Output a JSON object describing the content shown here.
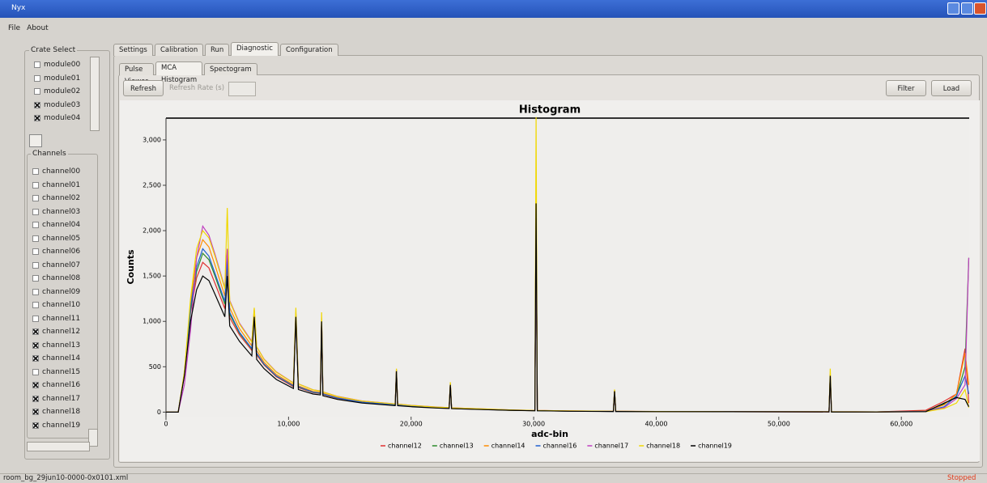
{
  "window": {
    "title": "Nyx"
  },
  "menu": [
    "File",
    "About"
  ],
  "crate_select": {
    "title": "Crate Select",
    "modules": [
      {
        "label": "module00",
        "checked": false
      },
      {
        "label": "module01",
        "checked": false
      },
      {
        "label": "module02",
        "checked": false
      },
      {
        "label": "module03",
        "checked": true
      },
      {
        "label": "module04",
        "checked": true
      }
    ]
  },
  "channels": {
    "title": "Channels",
    "items": [
      {
        "label": "channel00",
        "checked": false
      },
      {
        "label": "channel01",
        "checked": false
      },
      {
        "label": "channel02",
        "checked": false
      },
      {
        "label": "channel03",
        "checked": false
      },
      {
        "label": "channel04",
        "checked": false
      },
      {
        "label": "channel05",
        "checked": false
      },
      {
        "label": "channel06",
        "checked": false
      },
      {
        "label": "channel07",
        "checked": false
      },
      {
        "label": "channel08",
        "checked": false
      },
      {
        "label": "channel09",
        "checked": false
      },
      {
        "label": "channel10",
        "checked": false
      },
      {
        "label": "channel11",
        "checked": false
      },
      {
        "label": "channel12",
        "checked": true
      },
      {
        "label": "channel13",
        "checked": true
      },
      {
        "label": "channel14",
        "checked": true
      },
      {
        "label": "channel15",
        "checked": false
      },
      {
        "label": "channel16",
        "checked": true
      },
      {
        "label": "channel17",
        "checked": true
      },
      {
        "label": "channel18",
        "checked": true
      },
      {
        "label": "channel19",
        "checked": true
      }
    ]
  },
  "tabs": [
    {
      "label": "Settings",
      "active": false
    },
    {
      "label": "Calibration",
      "active": false
    },
    {
      "label": "Run",
      "active": false
    },
    {
      "label": "Diagnostic",
      "active": true
    },
    {
      "label": "Configuration",
      "active": false
    }
  ],
  "subtabs": [
    {
      "label": "Pulse Viewer",
      "active": false
    },
    {
      "label": "MCA Histogram",
      "active": true
    },
    {
      "label": "Spectogram",
      "active": false
    }
  ],
  "toolbar": {
    "refresh": "Refresh",
    "refresh_rate": "Refresh Rate (s)",
    "filter": "Filter",
    "load": "Load"
  },
  "chart_data": {
    "type": "line",
    "title": "Histogram",
    "x_label": "adc-bin",
    "y_label": "Counts",
    "xlim": [
      0,
      65536
    ],
    "ylim": [
      -50,
      3240
    ],
    "xticks": [
      0,
      {
        "value": 10000,
        "label": "10,000"
      },
      {
        "value": 20000,
        "label": "20,000"
      },
      {
        "value": 30000,
        "label": "30,000"
      },
      {
        "value": 40000,
        "label": "40,000"
      },
      {
        "value": 50000,
        "label": "50,000"
      },
      {
        "value": 60000,
        "label": "60,000"
      }
    ],
    "yticks": [
      0,
      500,
      {
        "value": 1000,
        "label": "1,000"
      },
      {
        "value": 1500,
        "label": "1,500"
      },
      {
        "value": 2000,
        "label": "2,000"
      },
      {
        "value": 2500,
        "label": "2,500"
      },
      {
        "value": 3000,
        "label": "3,000"
      }
    ],
    "x": [
      0,
      1000,
      1500,
      2000,
      2500,
      3000,
      3500,
      4000,
      4800,
      5000,
      5200,
      6000,
      7000,
      7200,
      7400,
      8000,
      9000,
      10400,
      10600,
      10800,
      12000,
      12600,
      12700,
      12800,
      14000,
      16000,
      18700,
      18800,
      18900,
      20000,
      22000,
      23100,
      23200,
      23300,
      26000,
      28000,
      30100,
      30200,
      30300,
      33000,
      36500,
      36600,
      36700,
      40000,
      46000,
      54100,
      54200,
      54300,
      58000,
      62000,
      63500,
      64500,
      65200,
      65500
    ],
    "series": [
      {
        "name": "channel12",
        "color": "#e03030",
        "values": [
          0,
          0,
          410,
          1100,
          1480,
          1650,
          1590,
          1420,
          1140,
          1600,
          1040,
          850,
          680,
          1080,
          630,
          520,
          390,
          280,
          1060,
          270,
          215,
          205,
          1010,
          195,
          150,
          105,
          78,
          455,
          76,
          64,
          48,
          42,
          305,
          40,
          30,
          21,
          16,
          2320,
          16,
          11,
          8,
          232,
          8,
          6,
          4,
          3,
          405,
          3,
          3,
          20,
          120,
          200,
          700,
          100
        ]
      },
      {
        "name": "channel13",
        "color": "#2a8a2a",
        "values": [
          0,
          0,
          415,
          1120,
          1550,
          1750,
          1680,
          1500,
          1190,
          1650,
          1080,
          870,
          695,
          1090,
          645,
          528,
          398,
          288,
          1070,
          278,
          218,
          208,
          1015,
          198,
          153,
          108,
          79,
          458,
          77,
          65,
          49,
          43,
          308,
          41,
          30,
          21,
          16,
          2340,
          16,
          11,
          8,
          234,
          8,
          6,
          5,
          4,
          408,
          3,
          3,
          10,
          90,
          170,
          500,
          1700
        ]
      },
      {
        "name": "channel14",
        "color": "#ff8c00",
        "values": [
          0,
          0,
          430,
          1200,
          1700,
          1900,
          1820,
          1620,
          1280,
          1750,
          1150,
          920,
          730,
          1110,
          680,
          550,
          415,
          300,
          1090,
          290,
          228,
          218,
          1030,
          208,
          160,
          113,
          83,
          465,
          81,
          68,
          52,
          46,
          315,
          44,
          32,
          23,
          18,
          2350,
          18,
          12,
          9,
          238,
          9,
          6,
          5,
          4,
          415,
          4,
          3,
          10,
          80,
          200,
          650,
          300
        ]
      },
      {
        "name": "channel16",
        "color": "#2060d0",
        "values": [
          0,
          0,
          420,
          1150,
          1600,
          1800,
          1720,
          1530,
          1220,
          1700,
          1100,
          880,
          700,
          1100,
          650,
          530,
          400,
          290,
          1080,
          280,
          220,
          210,
          1020,
          200,
          155,
          110,
          80,
          460,
          78,
          66,
          50,
          44,
          310,
          42,
          31,
          22,
          17,
          2330,
          17,
          11,
          8,
          235,
          8,
          6,
          5,
          4,
          410,
          4,
          3,
          8,
          60,
          180,
          400,
          200
        ]
      },
      {
        "name": "channel17",
        "color": "#c040c0",
        "values": [
          0,
          0,
          300,
          900,
          1700,
          2050,
          1950,
          1740,
          1370,
          1800,
          1230,
          980,
          780,
          1130,
          720,
          585,
          445,
          322,
          1100,
          312,
          246,
          234,
          1040,
          224,
          174,
          123,
          91,
          470,
          89,
          75,
          57,
          50,
          320,
          48,
          35,
          25,
          19,
          2300,
          19,
          13,
          10,
          240,
          10,
          7,
          5,
          4,
          420,
          4,
          3,
          5,
          50,
          150,
          300,
          1700
        ]
      },
      {
        "name": "channel18",
        "color": "#f0d800",
        "values": [
          0,
          0,
          440,
          1250,
          1800,
          2000,
          1920,
          1720,
          1360,
          2250,
          1220,
          970,
          770,
          1150,
          720,
          580,
          440,
          320,
          1150,
          310,
          245,
          232,
          1100,
          222,
          172,
          122,
          90,
          480,
          88,
          74,
          56,
          50,
          330,
          47,
          35,
          25,
          19,
          3250,
          19,
          13,
          10,
          250,
          10,
          7,
          5,
          4,
          480,
          4,
          3,
          5,
          40,
          100,
          250,
          50
        ]
      },
      {
        "name": "channel19",
        "color": "#000000",
        "values": [
          0,
          0,
          400,
          1000,
          1350,
          1500,
          1450,
          1300,
          1050,
          1500,
          950,
          780,
          620,
          1050,
          580,
          480,
          360,
          260,
          1050,
          250,
          200,
          190,
          1000,
          180,
          140,
          100,
          72,
          450,
          70,
          60,
          45,
          40,
          300,
          38,
          28,
          20,
          15,
          2300,
          15,
          10,
          7,
          230,
          7,
          5,
          4,
          3,
          400,
          3,
          2,
          5,
          100,
          160,
          140,
          60
        ]
      }
    ]
  },
  "status": {
    "file": "room_bg_29jun10-0000-0x0101.xml",
    "state": "Stopped"
  }
}
